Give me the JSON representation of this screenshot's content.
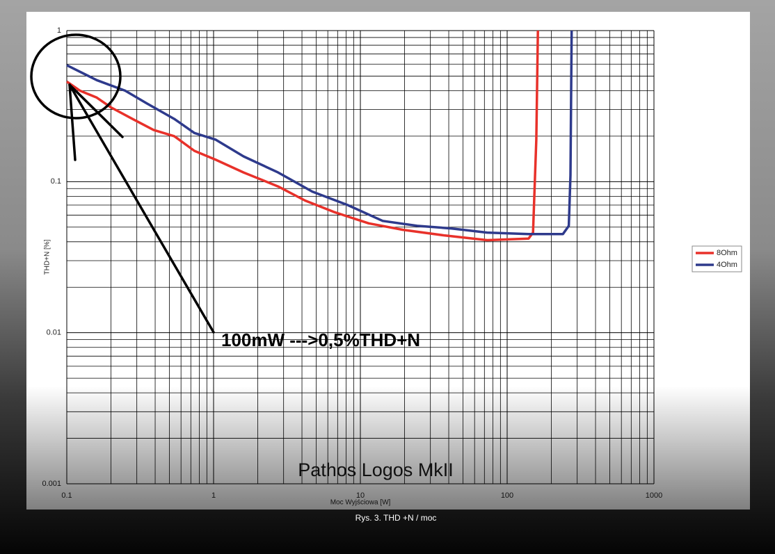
{
  "chart_data": {
    "type": "line",
    "annotation": "100mW --->0,5%THD+N",
    "subtitle": "Pathos Logos MkII",
    "caption": "Rys. 3. THD +N / moc",
    "x_label": "Moc Wyjściowa [W]",
    "y_label": "THD+N [%]",
    "xscale": "log",
    "yscale": "log",
    "xlim": [
      0.1,
      1000
    ],
    "ylim": [
      0.001,
      1
    ],
    "xticks": [
      0.1,
      1,
      10,
      100,
      1000
    ],
    "yticks": [
      0.001,
      0.01,
      0.1,
      1
    ],
    "grid": true,
    "minor_grid": true,
    "legend": "right",
    "series": [
      {
        "name": "8Ohm",
        "color": "#e8312a",
        "x": [
          0.1,
          0.123,
          0.16,
          0.2,
          0.28,
          0.39,
          0.54,
          0.74,
          1.03,
          1.6,
          2.75,
          4.2,
          6.6,
          11.4,
          19.5,
          37.7,
          73,
          140,
          150,
          158,
          162
        ],
        "values": [
          0.46,
          0.4,
          0.36,
          0.31,
          0.26,
          0.22,
          0.2,
          0.16,
          0.14,
          0.115,
          0.093,
          0.075,
          0.063,
          0.053,
          0.048,
          0.044,
          0.041,
          0.042,
          0.046,
          0.19,
          1
        ]
      },
      {
        "name": "4Ohm",
        "color": "#2e3a8c",
        "x": [
          0.1,
          0.16,
          0.25,
          0.35,
          0.54,
          0.74,
          1.03,
          1.6,
          2.75,
          4.7,
          8.2,
          14.2,
          24.4,
          42,
          73,
          140,
          240,
          263,
          270,
          275
        ],
        "values": [
          0.59,
          0.47,
          0.4,
          0.33,
          0.26,
          0.21,
          0.19,
          0.147,
          0.115,
          0.086,
          0.07,
          0.055,
          0.051,
          0.049,
          0.046,
          0.045,
          0.045,
          0.051,
          0.11,
          1
        ]
      }
    ]
  }
}
